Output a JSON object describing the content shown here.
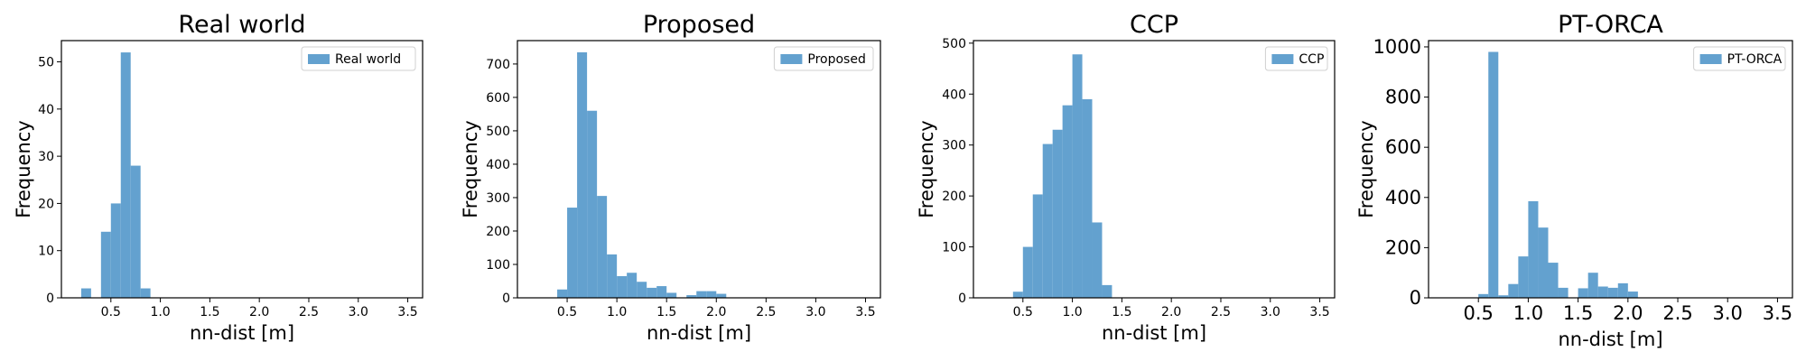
{
  "colors": {
    "bar": "#63a1cf",
    "frame": "#000000"
  },
  "chart_data": [
    {
      "type": "bar",
      "title": "Real world",
      "xlabel": "nn-dist [m]",
      "ylabel": "Frequency",
      "legend": {
        "label": "Real world",
        "placement": "top-right"
      },
      "grid": false,
      "xlim": [
        0.0,
        3.65
      ],
      "ylim": [
        0,
        54.5
      ],
      "xticks": [
        "0.5",
        "1.0",
        "1.5",
        "2.0",
        "2.5",
        "3.0",
        "3.5"
      ],
      "yticks": [
        "0",
        "10",
        "20",
        "30",
        "40",
        "50"
      ],
      "ytick_values": [
        0,
        10,
        20,
        30,
        40,
        50
      ],
      "bin_width": 0.1,
      "bin_left": [
        0.2,
        0.3,
        0.4,
        0.5,
        0.6,
        0.7,
        0.8
      ],
      "values": [
        2,
        0,
        14,
        20,
        52,
        28,
        2
      ]
    },
    {
      "type": "bar",
      "title": "Proposed",
      "xlabel": "nn-dist [m]",
      "ylabel": "Frequency",
      "legend": {
        "label": "Proposed",
        "placement": "top-right"
      },
      "grid": false,
      "xlim": [
        0.0,
        3.65
      ],
      "ylim": [
        0,
        770
      ],
      "xticks": [
        "0.5",
        "1.0",
        "1.5",
        "2.0",
        "2.5",
        "3.0",
        "3.5"
      ],
      "yticks": [
        "0",
        "100",
        "200",
        "300",
        "400",
        "500",
        "600",
        "700"
      ],
      "ytick_values": [
        0,
        100,
        200,
        300,
        400,
        500,
        600,
        700
      ],
      "bin_width": 0.1,
      "bin_left": [
        0.4,
        0.5,
        0.6,
        0.7,
        0.8,
        0.9,
        1.0,
        1.1,
        1.2,
        1.3,
        1.4,
        1.5,
        1.6,
        1.7,
        1.8,
        1.9,
        2.0,
        2.1
      ],
      "values": [
        25,
        270,
        735,
        560,
        305,
        130,
        65,
        75,
        48,
        30,
        35,
        15,
        0,
        8,
        20,
        20,
        12,
        0
      ]
    },
    {
      "type": "bar",
      "title": "CCP",
      "xlabel": "nn-dist [m]",
      "ylabel": "Frequency",
      "legend": {
        "label": "CCP",
        "placement": "top-right"
      },
      "grid": false,
      "xlim": [
        0.0,
        3.65
      ],
      "ylim": [
        0,
        505
      ],
      "xticks": [
        "0.5",
        "1.0",
        "1.5",
        "2.0",
        "2.5",
        "3.0",
        "3.5"
      ],
      "yticks": [
        "0",
        "100",
        "200",
        "300",
        "400",
        "500"
      ],
      "ytick_values": [
        0,
        100,
        200,
        300,
        400,
        500
      ],
      "bin_width": 0.1,
      "bin_left": [
        0.4,
        0.5,
        0.6,
        0.7,
        0.8,
        0.9,
        1.0,
        1.1,
        1.2,
        1.3,
        1.4
      ],
      "values": [
        12,
        100,
        203,
        302,
        330,
        378,
        478,
        390,
        148,
        25,
        0
      ]
    },
    {
      "type": "bar",
      "title": "PT-ORCA",
      "xlabel": "nn-dist [m]",
      "ylabel": "Frequency",
      "legend": {
        "label": "PT-ORCA",
        "placement": "top-right"
      },
      "grid": false,
      "xlim": [
        0.0,
        3.65
      ],
      "ylim": [
        0,
        1025
      ],
      "xticks": [
        "0.5",
        "1.0",
        "1.5",
        "2.0",
        "2.5",
        "3.0",
        "3.5"
      ],
      "yticks": [
        "0",
        "200",
        "400",
        "600",
        "800",
        "1000"
      ],
      "ytick_values": [
        0,
        200,
        400,
        600,
        800,
        1000
      ],
      "bin_width": 0.1,
      "bin_left": [
        0.5,
        0.6,
        0.7,
        0.8,
        0.9,
        1.0,
        1.1,
        1.2,
        1.3,
        1.4,
        1.5,
        1.6,
        1.7,
        1.8,
        1.9,
        2.0,
        2.1
      ],
      "values": [
        15,
        980,
        10,
        55,
        165,
        385,
        280,
        140,
        40,
        0,
        38,
        100,
        45,
        40,
        58,
        25,
        0
      ]
    }
  ]
}
